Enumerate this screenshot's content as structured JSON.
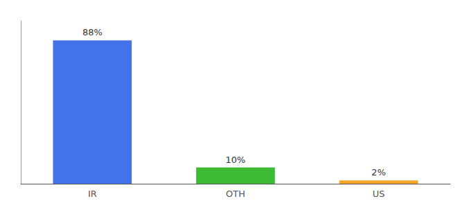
{
  "chart_data": {
    "type": "bar",
    "categories": [
      "IR",
      "OTH",
      "US"
    ],
    "values": [
      88,
      10,
      2
    ],
    "value_labels": [
      "88%",
      "10%",
      "2%"
    ],
    "colors": [
      "#4472e8",
      "#3dbb35",
      "#f5a623"
    ],
    "ylim": [
      0,
      100
    ],
    "grid": false,
    "data_labels": true,
    "tick_labels": "x"
  }
}
